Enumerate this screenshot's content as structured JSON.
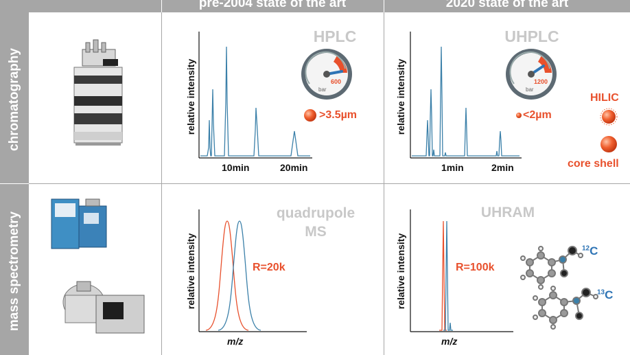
{
  "header": {
    "left_col": "pre-2004 state of the art",
    "right_col": "2020 state of the art"
  },
  "rows": {
    "chromatography": "chromatography",
    "mass_spec": "mass spectrometry"
  },
  "hplc": {
    "title": "HPLC",
    "ylabel": "relative intensity",
    "ticks": [
      "10min",
      "20min"
    ],
    "gauge_value": "600",
    "gauge_unit": "bar",
    "particle": ">3.5µm"
  },
  "uhplc": {
    "title": "UHPLC",
    "ylabel": "relative intensity",
    "ticks": [
      "1min",
      "2min"
    ],
    "gauge_value": "1200",
    "gauge_unit": "bar",
    "particle": "<2µm",
    "hilic": "HILIC",
    "core_shell": "core shell"
  },
  "quadrupole": {
    "title_line1": "quadrupole",
    "title_line2": "MS",
    "ylabel": "relative intensity",
    "resolution": "R=20k",
    "xlabel": "m/z"
  },
  "uhram": {
    "title": "UHRAM",
    "ylabel": "relative intensity",
    "resolution": "R=100k",
    "xlabel": "m/z",
    "c12": "12",
    "c13": "13",
    "c_symbol": "C"
  },
  "colors": {
    "blue": "#3b80a9",
    "red": "#e8502c",
    "gray": "#a6a6a6"
  }
}
